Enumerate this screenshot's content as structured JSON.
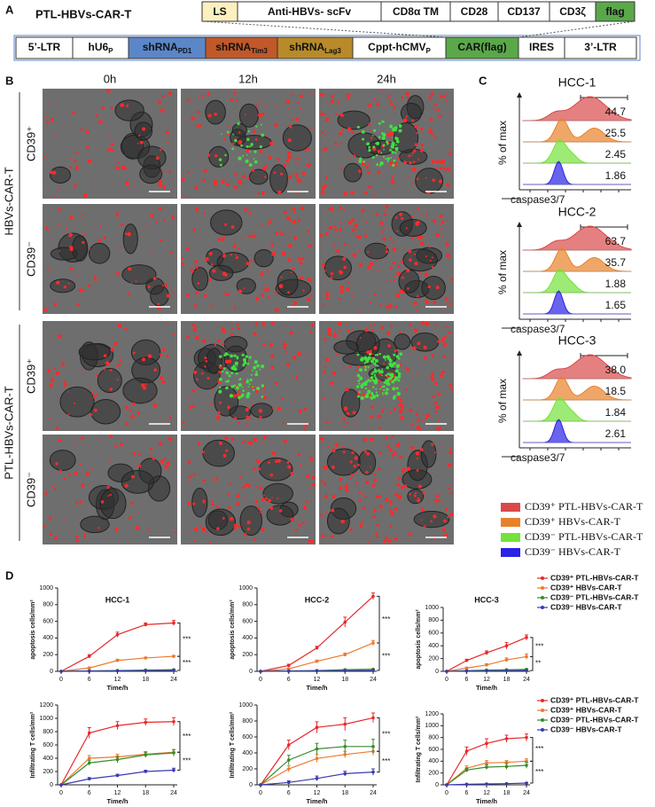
{
  "panel_a": {
    "label": "A",
    "construct": "PTL-HBVs-CAR-T",
    "car": [
      "LS",
      "Anti-HBVs- scFv",
      "CD8α TM",
      "CD28",
      "CD137",
      "CD3ζ",
      "flag"
    ],
    "vector": [
      {
        "text": "5’-LTR"
      },
      {
        "text": "hU6",
        "sub": "P"
      },
      {
        "text": "shRNA",
        "sub": "PD1"
      },
      {
        "text": "shRNA",
        "sub": "Tim3"
      },
      {
        "text": "shRNA",
        "sub": "Lag3"
      },
      {
        "text": "Cppt-hCMV",
        "sub": "P"
      },
      {
        "text": "CAR(flag)"
      },
      {
        "text": "IRES"
      },
      {
        "text": "3’-LTR"
      }
    ]
  },
  "panel_b": {
    "label": "B",
    "times": [
      "0h",
      "12h",
      "24h"
    ],
    "groups": [
      {
        "name": "HBVs-CAR-T",
        "rows": [
          "CD39⁺",
          "CD39⁻"
        ]
      },
      {
        "name": "PTL-HBVs-CAR-T",
        "rows": [
          "CD39⁺",
          "CD39⁻"
        ]
      }
    ]
  },
  "panel_c": {
    "label": "C",
    "y_label": "% of max",
    "x_label": "caspase3/7",
    "plots": [
      {
        "title": "HCC-1",
        "values": [
          44.7,
          25.5,
          2.45,
          1.86
        ]
      },
      {
        "title": "HCC-2",
        "values": [
          63.7,
          35.7,
          1.88,
          1.65
        ]
      },
      {
        "title": "HCC-3",
        "values": [
          38.0,
          18.5,
          1.84,
          2.61
        ],
        "value_labels": [
          "38.0",
          "18.5",
          "1.84",
          "2.61"
        ]
      }
    ],
    "legend": [
      {
        "name": "CD39⁺ PTL-HBVs-CAR-T",
        "color": "#d94a4a"
      },
      {
        "name": "CD39⁺ HBVs-CAR-T",
        "color": "#e8822a"
      },
      {
        "name": "CD39⁻ PTL-HBVs-CAR-T",
        "color": "#74e23a"
      },
      {
        "name": "CD39⁻ HBVs-CAR-T",
        "color": "#2a22e6"
      }
    ]
  },
  "panel_d": {
    "label": "D"
  },
  "chart_data": [
    {
      "type": "line",
      "title": "HCC-1",
      "y_label": "apoptosis cells/mm²",
      "x_label": "Time/h",
      "x": [
        0,
        6,
        12,
        18,
        24
      ],
      "xlim": [
        0,
        24
      ],
      "xticks": [
        0,
        6,
        12,
        18,
        24
      ],
      "ylim": [
        0,
        1000
      ],
      "yticks": [
        0,
        200,
        400,
        600,
        800,
        1000
      ],
      "annotations": [
        "***",
        "***"
      ],
      "series": [
        {
          "name": "CD39⁺ PTL-HBVs-CAR-T",
          "color": "#e8282a",
          "values": [
            0,
            180,
            440,
            560,
            580
          ],
          "errors": [
            0,
            20,
            30,
            20,
            30
          ]
        },
        {
          "name": "CD39⁺ HBVs-CAR-T",
          "color": "#ec7a2e",
          "values": [
            0,
            40,
            130,
            160,
            180
          ],
          "errors": [
            0,
            10,
            15,
            10,
            10
          ]
        },
        {
          "name": "CD39⁻ PTL-HBVs-CAR-T",
          "color": "#3a8a2e",
          "values": [
            0,
            5,
            10,
            15,
            20
          ],
          "errors": [
            0,
            3,
            3,
            3,
            5
          ]
        },
        {
          "name": "CD39⁻ HBVs-CAR-T",
          "color": "#3a3ab0",
          "values": [
            0,
            3,
            5,
            8,
            10
          ],
          "errors": [
            0,
            2,
            2,
            2,
            3
          ]
        }
      ]
    },
    {
      "type": "line",
      "title": "HCC-2",
      "y_label": "apoptosis cells/mm²",
      "x_label": "Time/h",
      "x": [
        0,
        6,
        12,
        18,
        24
      ],
      "xlim": [
        0,
        24
      ],
      "xticks": [
        0,
        6,
        12,
        18,
        24
      ],
      "ylim": [
        0,
        1000
      ],
      "yticks": [
        0,
        200,
        400,
        600,
        800,
        1000
      ],
      "annotations": [
        "***",
        "***"
      ],
      "series": [
        {
          "name": "CD39⁺ PTL-HBVs-CAR-T",
          "color": "#e8282a",
          "values": [
            0,
            70,
            280,
            590,
            900
          ],
          "errors": [
            0,
            15,
            20,
            60,
            40
          ]
        },
        {
          "name": "CD39⁺ HBVs-CAR-T",
          "color": "#ec7a2e",
          "values": [
            0,
            30,
            120,
            200,
            340
          ],
          "errors": [
            0,
            10,
            15,
            20,
            30
          ]
        },
        {
          "name": "CD39⁻ PTL-HBVs-CAR-T",
          "color": "#3a8a2e",
          "values": [
            0,
            5,
            10,
            20,
            25
          ],
          "errors": [
            0,
            3,
            3,
            5,
            5
          ]
        },
        {
          "name": "CD39⁻ HBVs-CAR-T",
          "color": "#3a3ab0",
          "values": [
            0,
            3,
            5,
            8,
            10
          ],
          "errors": [
            0,
            2,
            2,
            2,
            3
          ]
        }
      ]
    },
    {
      "type": "line",
      "title": "HCC-3",
      "y_label": "apoptosis cells/mm²",
      "x_label": "Time/h",
      "x": [
        0,
        6,
        12,
        18,
        24
      ],
      "xlim": [
        0,
        24
      ],
      "xticks": [
        0,
        6,
        12,
        18,
        24
      ],
      "ylim": [
        0,
        1000
      ],
      "yticks": [
        0,
        200,
        400,
        600,
        800,
        1000
      ],
      "annotations": [
        "***",
        "**"
      ],
      "legend": true,
      "series": [
        {
          "name": "CD39⁺ PTL-HBVs-CAR-T",
          "color": "#e8282a",
          "values": [
            0,
            170,
            290,
            400,
            530
          ],
          "errors": [
            0,
            20,
            30,
            50,
            40
          ]
        },
        {
          "name": "CD39⁺ HBVs-CAR-T",
          "color": "#ec7a2e",
          "values": [
            0,
            50,
            100,
            180,
            230
          ],
          "errors": [
            0,
            15,
            20,
            30,
            40
          ]
        },
        {
          "name": "CD39⁻ PTL-HBVs-CAR-T",
          "color": "#3a8a2e",
          "values": [
            0,
            10,
            20,
            25,
            30
          ],
          "errors": [
            0,
            5,
            5,
            5,
            10
          ]
        },
        {
          "name": "CD39⁻ HBVs-CAR-T",
          "color": "#3a3ab0",
          "values": [
            0,
            5,
            8,
            10,
            12
          ],
          "errors": [
            0,
            3,
            3,
            3,
            5
          ]
        }
      ]
    },
    {
      "type": "line",
      "y_label": "Infiltrating T cells/mm²",
      "x_label": "Time/h",
      "x": [
        0,
        6,
        12,
        18,
        24
      ],
      "xlim": [
        0,
        24
      ],
      "xticks": [
        0,
        6,
        12,
        18,
        24
      ],
      "ylim": [
        0,
        1200
      ],
      "yticks": [
        0,
        200,
        400,
        600,
        800,
        1000,
        1200
      ],
      "annotations": [
        "***",
        "***"
      ],
      "series": [
        {
          "name": "CD39⁺ PTL-HBVs-CAR-T",
          "color": "#e8282a",
          "values": [
            0,
            780,
            890,
            940,
            950
          ],
          "errors": [
            0,
            80,
            60,
            50,
            60
          ]
        },
        {
          "name": "CD39⁺ HBVs-CAR-T",
          "color": "#ec7a2e",
          "values": [
            0,
            400,
            420,
            460,
            490
          ],
          "errors": [
            0,
            40,
            40,
            40,
            40
          ]
        },
        {
          "name": "CD39⁻ PTL-HBVs-CAR-T",
          "color": "#3a8a2e",
          "values": [
            0,
            330,
            380,
            450,
            480
          ],
          "errors": [
            0,
            40,
            50,
            40,
            50
          ]
        },
        {
          "name": "CD39⁻ HBVs-CAR-T",
          "color": "#3a3ab0",
          "values": [
            0,
            90,
            140,
            200,
            220
          ],
          "errors": [
            0,
            20,
            20,
            20,
            30
          ]
        }
      ]
    },
    {
      "type": "line",
      "y_label": "Infiltrating T cells/mm²",
      "x_label": "Time/h",
      "x": [
        0,
        6,
        12,
        18,
        24
      ],
      "xlim": [
        0,
        24
      ],
      "xticks": [
        0,
        6,
        12,
        18,
        24
      ],
      "ylim": [
        0,
        1000
      ],
      "yticks": [
        0,
        200,
        400,
        600,
        800,
        1000
      ],
      "annotations": [
        "***",
        "***"
      ],
      "series": [
        {
          "name": "CD39⁺ PTL-HBVs-CAR-T",
          "color": "#e8282a",
          "values": [
            0,
            500,
            720,
            760,
            840
          ],
          "errors": [
            0,
            60,
            70,
            80,
            60
          ]
        },
        {
          "name": "CD39⁺ HBVs-CAR-T",
          "color": "#ec7a2e",
          "values": [
            0,
            200,
            330,
            380,
            420
          ],
          "errors": [
            0,
            40,
            50,
            40,
            50
          ]
        },
        {
          "name": "CD39⁻ PTL-HBVs-CAR-T",
          "color": "#3a8a2e",
          "values": [
            0,
            310,
            450,
            480,
            480
          ],
          "errors": [
            0,
            60,
            70,
            80,
            90
          ]
        },
        {
          "name": "CD39⁻ HBVs-CAR-T",
          "color": "#3a3ab0",
          "values": [
            0,
            30,
            80,
            140,
            160
          ],
          "errors": [
            0,
            20,
            30,
            30,
            40
          ]
        }
      ]
    },
    {
      "type": "line",
      "y_label": "Infiltrating T cells/mm²",
      "x_label": "Time/h",
      "x": [
        0,
        6,
        12,
        18,
        24
      ],
      "xlim": [
        0,
        24
      ],
      "xticks": [
        0,
        6,
        12,
        18,
        24
      ],
      "ylim": [
        0,
        1200
      ],
      "yticks": [
        0,
        200,
        400,
        600,
        800,
        1000,
        1200
      ],
      "annotations": [
        "***",
        "***"
      ],
      "legend": true,
      "series": [
        {
          "name": "CD39⁺ PTL-HBVs-CAR-T",
          "color": "#e8282a",
          "values": [
            0,
            570,
            700,
            780,
            800
          ],
          "errors": [
            0,
            70,
            80,
            60,
            60
          ]
        },
        {
          "name": "CD39⁺ HBVs-CAR-T",
          "color": "#ec7a2e",
          "values": [
            0,
            280,
            370,
            380,
            400
          ],
          "errors": [
            0,
            40,
            40,
            30,
            40
          ]
        },
        {
          "name": "CD39⁻ PTL-HBVs-CAR-T",
          "color": "#3a8a2e",
          "values": [
            0,
            250,
            300,
            310,
            330
          ],
          "errors": [
            0,
            30,
            40,
            50,
            50
          ]
        },
        {
          "name": "CD39⁻ HBVs-CAR-T",
          "color": "#3a3ab0",
          "values": [
            0,
            10,
            15,
            20,
            30
          ],
          "errors": [
            0,
            5,
            5,
            5,
            10
          ]
        }
      ]
    }
  ]
}
